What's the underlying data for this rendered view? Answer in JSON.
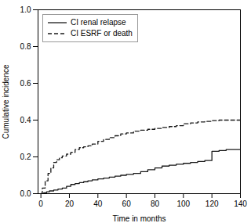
{
  "chart_data": {
    "type": "line",
    "xlabel": "Time in months",
    "ylabel": "Cumulative incidence",
    "xlim": [
      -2,
      140
    ],
    "ylim": [
      0.0,
      1.0
    ],
    "xticks": [
      0,
      20,
      40,
      60,
      80,
      100,
      120,
      140
    ],
    "yticks": [
      {
        "value": 0.0,
        "label": "0.0"
      },
      0.2,
      0.4,
      0.6,
      0.8,
      {
        "value": 1.0,
        "label": "1.0"
      }
    ],
    "grid": false,
    "legend": "upper left",
    "series": [
      {
        "name": "CI renal relapse",
        "color": "#1a1a1a",
        "line_style": "solid",
        "x": [
          0,
          2,
          4,
          6,
          9,
          12,
          15,
          18,
          21,
          24,
          27,
          30,
          33,
          36,
          40,
          44,
          48,
          52,
          56,
          60,
          65,
          70,
          75,
          80,
          85,
          90,
          95,
          100,
          105,
          110,
          115,
          120,
          125,
          130,
          135,
          140
        ],
        "values": [
          0.0,
          0.005,
          0.01,
          0.015,
          0.02,
          0.025,
          0.03,
          0.04,
          0.05,
          0.055,
          0.06,
          0.065,
          0.07,
          0.075,
          0.08,
          0.085,
          0.09,
          0.095,
          0.1,
          0.105,
          0.11,
          0.12,
          0.13,
          0.14,
          0.15,
          0.155,
          0.16,
          0.165,
          0.17,
          0.175,
          0.18,
          0.23,
          0.235,
          0.24,
          0.24,
          0.24
        ]
      },
      {
        "name": "CI ESRF or death",
        "color": "#1a1a1a",
        "line_style": "dashed",
        "x": [
          0,
          1,
          3,
          5,
          7,
          9,
          11,
          13,
          15,
          18,
          21,
          24,
          27,
          30,
          33,
          36,
          40,
          44,
          48,
          52,
          56,
          60,
          65,
          70,
          75,
          80,
          85,
          90,
          95,
          100,
          105,
          110,
          115,
          120,
          125,
          130,
          135,
          140
        ],
        "values": [
          0.0,
          0.03,
          0.07,
          0.11,
          0.14,
          0.17,
          0.185,
          0.195,
          0.205,
          0.215,
          0.225,
          0.24,
          0.25,
          0.255,
          0.26,
          0.27,
          0.285,
          0.295,
          0.305,
          0.315,
          0.325,
          0.33,
          0.34,
          0.345,
          0.35,
          0.355,
          0.36,
          0.365,
          0.37,
          0.38,
          0.385,
          0.39,
          0.393,
          0.397,
          0.4,
          0.4,
          0.4,
          0.4
        ]
      }
    ]
  }
}
